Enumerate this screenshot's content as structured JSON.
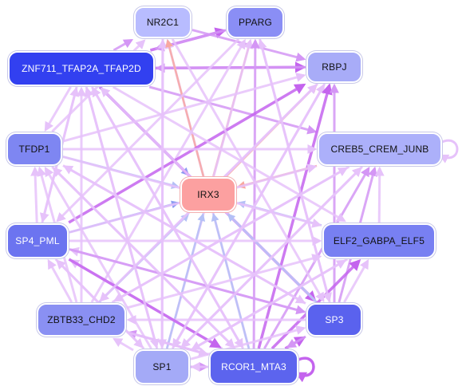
{
  "graph": {
    "nodes": [
      {
        "id": "NR2C1",
        "label": "NR2C1",
        "fill": "#b8bcff",
        "text": "#111111"
      },
      {
        "id": "PPARG",
        "label": "PPARG",
        "fill": "#8a8ef5",
        "text": "#111111"
      },
      {
        "id": "ZNF711",
        "label": "ZNF711_TFAP2A_TFAP2D",
        "fill": "#3240f0",
        "text": "#ffffff"
      },
      {
        "id": "RBPJ",
        "label": "RBPJ",
        "fill": "#a8acf8",
        "text": "#111111"
      },
      {
        "id": "TFDP1",
        "label": "TFDP1",
        "fill": "#7e86f2",
        "text": "#111111"
      },
      {
        "id": "CREB5",
        "label": "CREB5_CREM_JUNB",
        "fill": "#acb0fa",
        "text": "#111111"
      },
      {
        "id": "IRX3",
        "label": "IRX3",
        "fill": "#fca0a0",
        "text": "#111111"
      },
      {
        "id": "SP4",
        "label": "SP4_PML",
        "fill": "#6c74f0",
        "text": "#ffffff"
      },
      {
        "id": "ELF2",
        "label": "ELF2_GABPA_ELF5",
        "fill": "#7880f2",
        "text": "#111111"
      },
      {
        "id": "ZBTB33",
        "label": "ZBTB33_CHD2",
        "fill": "#8a90f3",
        "text": "#111111"
      },
      {
        "id": "SP3",
        "label": "SP3",
        "fill": "#5a62ee",
        "text": "#ffffff"
      },
      {
        "id": "SP1",
        "label": "SP1",
        "fill": "#a4aaf7",
        "text": "#111111"
      },
      {
        "id": "RCOR1",
        "label": "RCOR1_MTA3",
        "fill": "#5c64ee",
        "text": "#ffffff"
      }
    ],
    "edge_colors": {
      "light": "#e6c2fa",
      "medium": "#d496f5",
      "strong": "#c464ee",
      "blue": "#8c9cf2",
      "lightblue": "#b4c0f6",
      "red": "#f8a8a0"
    },
    "edges": [
      [
        "ZNF711",
        "PPARG",
        "strong"
      ],
      [
        "PPARG",
        "ZNF711",
        "medium"
      ],
      [
        "ZNF711",
        "NR2C1",
        "medium"
      ],
      [
        "ZNF711",
        "RBPJ",
        "strong"
      ],
      [
        "RBPJ",
        "ZNF711",
        "medium"
      ],
      [
        "ZNF711",
        "IRX3",
        "blue"
      ],
      [
        "ZNF711",
        "SP3",
        "strong"
      ],
      [
        "ZNF711",
        "CREB5",
        "medium"
      ],
      [
        "NR2C1",
        "RBPJ",
        "medium"
      ],
      [
        "RCOR1",
        "NR2C1",
        "light"
      ],
      [
        "SP1",
        "NR2C1",
        "light"
      ],
      [
        "TFDP1",
        "NR2C1",
        "light"
      ],
      [
        "IRX3",
        "NR2C1",
        "red"
      ],
      [
        "IRX3",
        "PPARG",
        "red"
      ],
      [
        "SP1",
        "PPARG",
        "light"
      ],
      [
        "SP3",
        "PPARG",
        "light"
      ],
      [
        "ZBTB33",
        "PPARG",
        "light"
      ],
      [
        "RCOR1",
        "PPARG",
        "medium"
      ],
      [
        "IRX3",
        "RBPJ",
        "red"
      ],
      [
        "SP4",
        "RBPJ",
        "strong"
      ],
      [
        "SP1",
        "RBPJ",
        "light"
      ],
      [
        "RCOR1",
        "RBPJ",
        "strong"
      ],
      [
        "SP3",
        "RBPJ",
        "medium"
      ],
      [
        "ZBTB33",
        "RBPJ",
        "light"
      ],
      [
        "TFDP1",
        "RBPJ",
        "light"
      ],
      [
        "SP1",
        "ZNF711",
        "light"
      ],
      [
        "SP3",
        "ZNF711",
        "light"
      ],
      [
        "ZBTB33",
        "ZNF711",
        "light"
      ],
      [
        "SP4",
        "ZNF711",
        "light"
      ],
      [
        "RCOR1",
        "ZNF711",
        "light"
      ],
      [
        "TFDP1",
        "IRX3",
        "lightblue"
      ],
      [
        "SP4",
        "IRX3",
        "blue"
      ],
      [
        "SP1",
        "IRX3",
        "lightblue"
      ],
      [
        "RCOR1",
        "IRX3",
        "lightblue"
      ],
      [
        "SP3",
        "IRX3",
        "lightblue"
      ],
      [
        "ELF2",
        "IRX3",
        "lightblue"
      ],
      [
        "CREB5",
        "IRX3",
        "red"
      ],
      [
        "ZBTB33",
        "IRX3",
        "lightblue"
      ],
      [
        "SP4",
        "TFDP1",
        "light"
      ],
      [
        "SP1",
        "TFDP1",
        "light"
      ],
      [
        "ZBTB33",
        "TFDP1",
        "light"
      ],
      [
        "RCOR1",
        "TFDP1",
        "light"
      ],
      [
        "SP3",
        "TFDP1",
        "light"
      ],
      [
        "TFDP1",
        "CREB5",
        "light"
      ],
      [
        "SP4",
        "CREB5",
        "light"
      ],
      [
        "SP1",
        "CREB5",
        "light"
      ],
      [
        "RCOR1",
        "CREB5",
        "medium"
      ],
      [
        "SP3",
        "CREB5",
        "medium"
      ],
      [
        "ELF2",
        "CREB5",
        "light"
      ],
      [
        "ZBTB33",
        "CREB5",
        "light"
      ],
      [
        "SP1",
        "SP4",
        "light"
      ],
      [
        "ZBTB33",
        "SP4",
        "light"
      ],
      [
        "RCOR1",
        "SP4",
        "light"
      ],
      [
        "SP3",
        "SP4",
        "light"
      ],
      [
        "SP4",
        "ELF2",
        "light"
      ],
      [
        "SP1",
        "ELF2",
        "light"
      ],
      [
        "RCOR1",
        "ELF2",
        "strong"
      ],
      [
        "SP3",
        "ELF2",
        "light"
      ],
      [
        "ZBTB33",
        "ELF2",
        "light"
      ],
      [
        "SP1",
        "ZBTB33",
        "light"
      ],
      [
        "RCOR1",
        "ZBTB33",
        "medium"
      ],
      [
        "SP3",
        "ZBTB33",
        "light"
      ],
      [
        "SP4",
        "SP3",
        "medium"
      ],
      [
        "SP1",
        "SP3",
        "light"
      ],
      [
        "RCOR1",
        "SP3",
        "strong"
      ],
      [
        "SP3",
        "RCOR1",
        "medium"
      ],
      [
        "SP1",
        "RCOR1",
        "medium"
      ],
      [
        "RCOR1",
        "SP1",
        "light"
      ],
      [
        "SP4",
        "RCOR1",
        "strong"
      ],
      [
        "SP4",
        "SP1",
        "light"
      ],
      [
        "ZBTB33",
        "RCOR1",
        "light"
      ],
      [
        "TFDP1",
        "SP3",
        "light"
      ],
      [
        "TFDP1",
        "RCOR1",
        "light"
      ],
      [
        "TFDP1",
        "ELF2",
        "light"
      ],
      [
        "ZNF711",
        "SP1",
        "light"
      ],
      [
        "PPARG",
        "SP3",
        "light"
      ],
      [
        "PPARG",
        "SP4",
        "light"
      ],
      [
        "NR2C1",
        "SP3",
        "light"
      ],
      [
        "NR2C1",
        "SP1",
        "light"
      ],
      [
        "RBPJ",
        "SP1",
        "light"
      ],
      [
        "RBPJ",
        "ZBTB33",
        "light"
      ],
      [
        "CREB5",
        "ZBTB33",
        "light"
      ],
      [
        "CREB5",
        "SP1",
        "light"
      ],
      [
        "ELF2",
        "SP1",
        "light"
      ],
      [
        "ZNF711",
        "ELF2",
        "light"
      ],
      [
        "ZNF711",
        "RCOR1",
        "light"
      ],
      [
        "ZNF711",
        "SP4",
        "light"
      ],
      [
        "ZNF711",
        "TFDP1",
        "light"
      ]
    ],
    "self_loops": [
      [
        "CREB5",
        "light"
      ],
      [
        "RCOR1",
        "strong"
      ]
    ]
  }
}
